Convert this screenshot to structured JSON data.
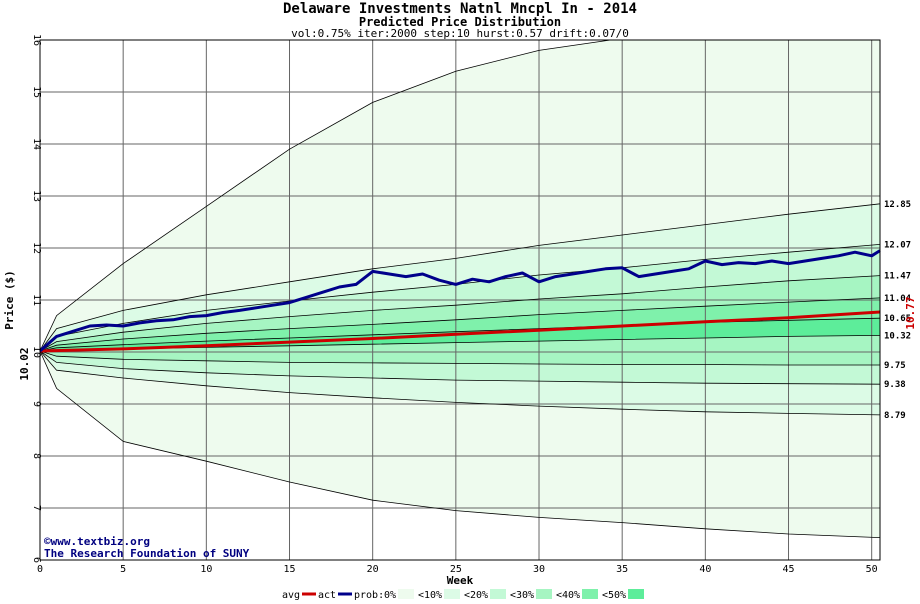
{
  "chart_data": {
    "type": "area",
    "title": "Delaware Investments Natnl Mncpl In - 2014",
    "subtitle": "Predicted Price Distribution",
    "params": "vol:0.75% iter:2000 step:10 hurst:0.57 drift:0.07/0",
    "xlabel": "Week",
    "ylabel": "Price ($)",
    "xlim": [
      0,
      50.5
    ],
    "ylim": [
      6,
      16
    ],
    "xticks": [
      0,
      5,
      10,
      15,
      20,
      25,
      30,
      35,
      40,
      45,
      50
    ],
    "yticks": [
      6,
      7,
      8,
      9,
      10,
      11,
      12,
      13,
      14,
      15,
      16
    ],
    "grid": true,
    "start_price": 10.02,
    "start_price_label": "10.02",
    "final_actual_label": "10.77",
    "credits": [
      "©www.textbiz.org",
      "The Research Foundation of SUNY"
    ],
    "colors": {
      "band0": "#eefbee",
      "band10": "#dcfbe6",
      "band20": "#c3f9d6",
      "band30": "#a6f5c2",
      "band40": "#7ff1ab",
      "band50": "#5ded9a",
      "avg": "#cc0000",
      "act": "#00008b",
      "curve": "#000000",
      "grid": "#666666"
    },
    "envelope_lines": [
      {
        "label": "12.85",
        "weeks": [
          0,
          1,
          5,
          10,
          15,
          20,
          25,
          30,
          35,
          40,
          45,
          50.5
        ],
        "values": [
          10.02,
          10.45,
          10.8,
          11.1,
          11.35,
          11.6,
          11.8,
          12.05,
          12.25,
          12.45,
          12.65,
          12.85
        ]
      },
      {
        "label": "12.07",
        "weeks": [
          0,
          1,
          5,
          10,
          15,
          20,
          25,
          30,
          35,
          40,
          45,
          50.5
        ],
        "values": [
          10.02,
          10.3,
          10.55,
          10.8,
          10.98,
          11.15,
          11.3,
          11.48,
          11.62,
          11.78,
          11.92,
          12.07
        ]
      },
      {
        "label": "11.47",
        "weeks": [
          0,
          1,
          5,
          10,
          15,
          20,
          25,
          30,
          35,
          40,
          45,
          50.5
        ],
        "values": [
          10.02,
          10.2,
          10.38,
          10.55,
          10.68,
          10.8,
          10.9,
          11.02,
          11.12,
          11.25,
          11.37,
          11.47
        ]
      },
      {
        "label": "11.04",
        "weeks": [
          0,
          1,
          5,
          10,
          15,
          20,
          25,
          30,
          35,
          40,
          45,
          50.5
        ],
        "values": [
          10.02,
          10.13,
          10.25,
          10.36,
          10.45,
          10.53,
          10.62,
          10.72,
          10.8,
          10.88,
          10.96,
          11.04
        ]
      },
      {
        "label": "10.65",
        "weeks": [
          0,
          1,
          5,
          10,
          15,
          20,
          25,
          30,
          35,
          40,
          45,
          50.5
        ],
        "values": [
          10.02,
          10.08,
          10.14,
          10.21,
          10.27,
          10.33,
          10.39,
          10.45,
          10.51,
          10.57,
          10.61,
          10.65
        ]
      },
      {
        "label": "10.32",
        "weeks": [
          0,
          1,
          5,
          10,
          15,
          20,
          25,
          30,
          35,
          40,
          45,
          50.5
        ],
        "values": [
          10.02,
          10.03,
          10.06,
          10.09,
          10.12,
          10.15,
          10.18,
          10.21,
          10.24,
          10.27,
          10.3,
          10.32
        ]
      },
      {
        "label": "9.75",
        "weeks": [
          0,
          1,
          5,
          10,
          15,
          20,
          25,
          30,
          35,
          40,
          45,
          50.5
        ],
        "values": [
          10.02,
          9.92,
          9.86,
          9.83,
          9.8,
          9.79,
          9.78,
          9.77,
          9.76,
          9.76,
          9.75,
          9.75
        ]
      },
      {
        "label": "9.38",
        "weeks": [
          0,
          1,
          5,
          10,
          15,
          20,
          25,
          30,
          35,
          40,
          45,
          50.5
        ],
        "values": [
          10.02,
          9.8,
          9.68,
          9.6,
          9.54,
          9.5,
          9.46,
          9.44,
          9.42,
          9.4,
          9.39,
          9.38
        ]
      },
      {
        "label": "8.79",
        "weeks": [
          0,
          1,
          5,
          10,
          15,
          20,
          25,
          30,
          35,
          40,
          45,
          50.5
        ],
        "values": [
          10.02,
          9.65,
          9.5,
          9.35,
          9.22,
          9.12,
          9.03,
          8.96,
          8.9,
          8.85,
          8.82,
          8.79
        ]
      }
    ],
    "outer_envelope": {
      "upper": {
        "weeks": [
          0,
          1,
          5,
          10,
          15,
          20,
          25,
          30,
          34.3
        ],
        "values": [
          10.02,
          10.7,
          11.7,
          12.8,
          13.9,
          14.8,
          15.4,
          15.8,
          16.0
        ]
      },
      "lower": {
        "weeks": [
          0,
          1,
          5,
          10,
          15,
          20,
          25,
          30,
          35,
          40,
          45,
          50.5
        ],
        "values": [
          10.02,
          9.3,
          8.28,
          7.9,
          7.5,
          7.15,
          6.95,
          6.82,
          6.72,
          6.6,
          6.5,
          6.43
        ]
      }
    },
    "series": [
      {
        "name": "avg",
        "weeks": [
          0,
          5,
          10,
          15,
          20,
          25,
          30,
          35,
          40,
          45,
          50.5
        ],
        "values": [
          10.02,
          10.06,
          10.12,
          10.19,
          10.26,
          10.34,
          10.42,
          10.5,
          10.58,
          10.66,
          10.77
        ]
      },
      {
        "name": "act",
        "weeks": [
          0,
          1,
          2,
          3,
          4,
          5,
          6,
          7,
          8,
          9,
          10,
          11,
          12,
          13,
          14,
          15,
          16,
          17,
          18,
          19,
          20,
          21,
          22,
          23,
          24,
          25,
          26,
          27,
          28,
          29,
          30,
          31,
          32,
          33,
          34,
          35,
          36,
          37,
          38,
          39,
          40,
          41,
          42,
          43,
          44,
          45,
          46,
          47,
          48,
          49,
          50,
          50.5
        ],
        "values": [
          10.02,
          10.3,
          10.4,
          10.5,
          10.52,
          10.5,
          10.56,
          10.6,
          10.62,
          10.68,
          10.7,
          10.76,
          10.8,
          10.85,
          10.9,
          10.95,
          11.05,
          11.15,
          11.25,
          11.3,
          11.55,
          11.5,
          11.45,
          11.5,
          11.38,
          11.3,
          11.4,
          11.35,
          11.45,
          11.52,
          11.35,
          11.45,
          11.5,
          11.55,
          11.6,
          11.62,
          11.45,
          11.5,
          11.55,
          11.6,
          11.75,
          11.68,
          11.72,
          11.7,
          11.75,
          11.7,
          11.75,
          11.8,
          11.85,
          11.92,
          11.85,
          11.95
        ]
      }
    ],
    "legend": {
      "avg": "avg",
      "act": "act",
      "prob_prefix": "prob:",
      "bands": [
        "0%",
        "<10%",
        "<20%",
        "<30%",
        "<40%",
        "<50%"
      ]
    }
  }
}
